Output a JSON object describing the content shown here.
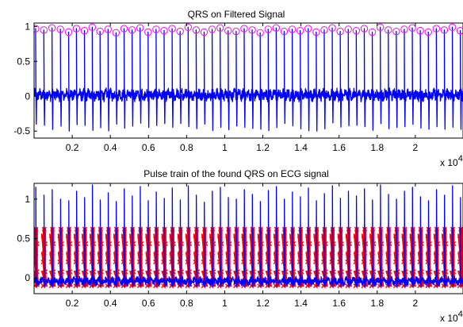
{
  "chart_data": [
    {
      "type": "line",
      "title": "QRS on Filtered Signal",
      "xlabel": "",
      "ylabel": "",
      "x_multiplier_label": "x 10",
      "x_multiplier_exponent": "4",
      "xlim": [
        0,
        22500
      ],
      "ylim": [
        -0.6,
        1.05
      ],
      "xticks": [
        2000,
        4000,
        6000,
        8000,
        10000,
        12000,
        14000,
        16000,
        18000,
        20000
      ],
      "xtick_labels": [
        "0.2",
        "0.4",
        "0.6",
        "0.8",
        "1",
        "1.2",
        "1.4",
        "1.6",
        "1.8",
        "2"
      ],
      "yticks": [
        -0.5,
        0,
        0.5,
        1
      ],
      "ytick_labels": [
        "-0.5",
        "0",
        "0.5",
        "1"
      ],
      "grid": false,
      "series": [
        {
          "color": "#0000ff",
          "marks": "dense ECG trace: baseline noise near 0 (about -0.08 to 0.12) with spikes reaching about 1 and dips to about -0.5"
        },
        {
          "color": "#ff00ff",
          "marker": "circle",
          "marks": "detected QRS peak markers along y from about 0.87 to 1"
        }
      ],
      "qrs_x": [
        100,
        530,
        960,
        1400,
        1830,
        2240,
        2660,
        3070,
        3480,
        3900,
        4320,
        4740,
        5160,
        5580,
        6000,
        6420,
        6840,
        7260,
        7680,
        8100,
        8520,
        8940,
        9360,
        9780,
        10200,
        10620,
        11040,
        11460,
        11880,
        12300,
        12720,
        13140,
        13560,
        13980,
        14400,
        14820,
        15240,
        15660,
        16080,
        16500,
        16920,
        17340,
        17760,
        18180,
        18600,
        19020,
        19440,
        19860,
        20280,
        20700,
        21120,
        21540,
        21960,
        22380
      ],
      "qrs_y": [
        0.97,
        0.95,
        0.98,
        0.96,
        0.92,
        0.97,
        0.94,
        0.99,
        0.93,
        0.96,
        0.91,
        0.97,
        0.95,
        0.98,
        0.92,
        0.96,
        0.94,
        0.97,
        0.93,
        0.99,
        0.95,
        0.92,
        0.96,
        0.98,
        0.94,
        0.93,
        0.97,
        0.95,
        0.91,
        0.96,
        0.98,
        0.93,
        0.96,
        0.94,
        0.97,
        0.92,
        0.95,
        0.98,
        0.93,
        0.96,
        0.94,
        0.97,
        0.92,
        0.99,
        0.95,
        0.93,
        0.96,
        0.98,
        0.94,
        0.92,
        0.97,
        0.95,
        0.99,
        0.94
      ]
    },
    {
      "type": "line",
      "title": "Pulse train of the found QRS on ECG signal",
      "xlabel": "",
      "ylabel": "",
      "x_multiplier_label": "x 10",
      "x_multiplier_exponent": "4",
      "xlim": [
        0,
        22500
      ],
      "ylim": [
        -0.2,
        1.2
      ],
      "xticks": [
        2000,
        4000,
        6000,
        8000,
        10000,
        12000,
        14000,
        16000,
        18000,
        20000
      ],
      "xtick_labels": [
        "0.2",
        "0.4",
        "0.6",
        "0.8",
        "1",
        "1.2",
        "1.4",
        "1.6",
        "1.8",
        "2"
      ],
      "yticks": [
        0,
        0.5,
        1
      ],
      "ytick_labels": [
        "0",
        "0.5",
        "1"
      ],
      "grid": false,
      "series": [
        {
          "color": "#0000ff",
          "marks": "ECG trace: baseline near 0 (about -0.12 to 0.05) with R-peaks reaching about 1 to 1.2"
        },
        {
          "color": "#ff0000",
          "marks": "rectangular pulse train at each found QRS, levels from about -0.1 to 0.62"
        }
      ],
      "pulse_low": -0.1,
      "pulse_high": 0.62,
      "pulse_width": 110,
      "beat_x": [
        100,
        530,
        960,
        1400,
        1830,
        2240,
        2660,
        3070,
        3480,
        3900,
        4320,
        4740,
        5160,
        5580,
        6000,
        6420,
        6840,
        7260,
        7680,
        8100,
        8520,
        8940,
        9360,
        9780,
        10200,
        10620,
        11040,
        11460,
        11880,
        12300,
        12720,
        13140,
        13560,
        13980,
        14400,
        14820,
        15240,
        15660,
        16080,
        16500,
        16920,
        17340,
        17760,
        18180,
        18600,
        19020,
        19440,
        19860,
        20280,
        20700,
        21120,
        21540,
        21960,
        22380
      ],
      "beat_y": [
        1.15,
        1.05,
        1.12,
        1.0,
        0.98,
        1.1,
        1.02,
        1.18,
        0.99,
        1.08,
        0.97,
        1.13,
        1.04,
        1.16,
        0.98,
        1.09,
        1.01,
        1.14,
        0.99,
        1.17,
        1.05,
        0.96,
        1.1,
        1.15,
        1.02,
        1.0,
        1.12,
        1.06,
        0.97,
        1.11,
        1.16,
        1.0,
        1.09,
        1.03,
        1.14,
        0.98,
        1.07,
        1.17,
        1.01,
        1.1,
        1.04,
        1.13,
        0.99,
        1.18,
        1.06,
        1.0,
        1.1,
        1.15,
        1.03,
        0.98,
        1.12,
        1.05,
        1.17,
        1.02
      ]
    }
  ]
}
